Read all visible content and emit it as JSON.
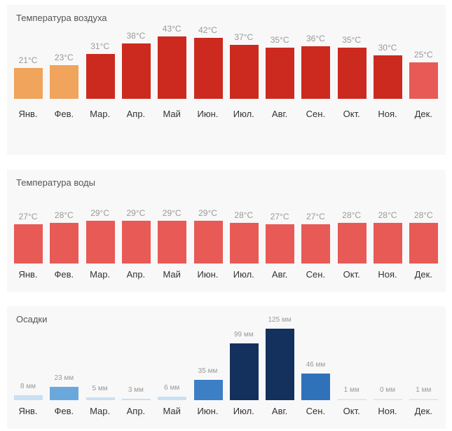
{
  "months": [
    "Янв.",
    "Фев.",
    "Мар.",
    "Апр.",
    "Май",
    "Июн.",
    "Июл.",
    "Авг.",
    "Сен.",
    "Окт.",
    "Ноя.",
    "Дек."
  ],
  "chart_data": [
    {
      "type": "bar",
      "title": "Температура воздуха",
      "categories": [
        "Янв.",
        "Фев.",
        "Мар.",
        "Апр.",
        "Май",
        "Июн.",
        "Июл.",
        "Авг.",
        "Сен.",
        "Окт.",
        "Ноя.",
        "Дек."
      ],
      "values": [
        21,
        23,
        31,
        38,
        43,
        42,
        37,
        35,
        36,
        35,
        30,
        25
      ],
      "labels": [
        "21°C",
        "23°C",
        "31°C",
        "38°C",
        "43°C",
        "42°C",
        "37°C",
        "35°C",
        "36°C",
        "35°C",
        "30°C",
        "25°C"
      ],
      "colors": [
        "#f0a45c",
        "#f0a45c",
        "#cc2a1f",
        "#cc2a1f",
        "#cc2a1f",
        "#cc2a1f",
        "#cc2a1f",
        "#cc2a1f",
        "#cc2a1f",
        "#cc2a1f",
        "#cc2a1f",
        "#e85a55"
      ],
      "unit": "°C",
      "xlabel": "",
      "ylabel": "",
      "grid": false
    },
    {
      "type": "bar",
      "title": "Температура воды",
      "categories": [
        "Янв.",
        "Фев.",
        "Мар.",
        "Апр.",
        "Май",
        "Июн.",
        "Июл.",
        "Авг.",
        "Сен.",
        "Окт.",
        "Ноя.",
        "Дек."
      ],
      "values": [
        27,
        28,
        29,
        29,
        29,
        29,
        28,
        27,
        27,
        28,
        28,
        28
      ],
      "labels": [
        "27°C",
        "28°C",
        "29°C",
        "29°C",
        "29°C",
        "29°C",
        "28°C",
        "27°C",
        "27°C",
        "28°C",
        "28°C",
        "28°C"
      ],
      "colors": [
        "#e85a55",
        "#e85a55",
        "#e85a55",
        "#e85a55",
        "#e85a55",
        "#e85a55",
        "#e85a55",
        "#e85a55",
        "#e85a55",
        "#e85a55",
        "#e85a55",
        "#e85a55"
      ],
      "unit": "°C",
      "xlabel": "",
      "ylabel": "",
      "grid": false
    },
    {
      "type": "bar",
      "title": "Осадки",
      "categories": [
        "Янв.",
        "Фев.",
        "Мар.",
        "Апр.",
        "Май",
        "Июн.",
        "Июл.",
        "Авг.",
        "Сен.",
        "Окт.",
        "Ноя.",
        "Дек."
      ],
      "values": [
        8,
        23,
        5,
        3,
        6,
        35,
        99,
        125,
        46,
        1,
        0,
        1
      ],
      "labels": [
        "8 мм",
        "23 мм",
        "5 мм",
        "3 мм",
        "6 мм",
        "35 мм",
        "99 мм",
        "125 мм",
        "46 мм",
        "1 мм",
        "0 мм",
        "1 мм"
      ],
      "colors": [
        "#c8e0f4",
        "#6aa8dc",
        "#c8e0f4",
        "#c8e0f4",
        "#c8e0f4",
        "#3c7fc4",
        "#14305c",
        "#14305c",
        "#2f72ba",
        "#dde8f4",
        "#dde8f4",
        "#dde8f4"
      ],
      "unit": "мм",
      "xlabel": "",
      "ylabel": "",
      "grid": false
    }
  ]
}
